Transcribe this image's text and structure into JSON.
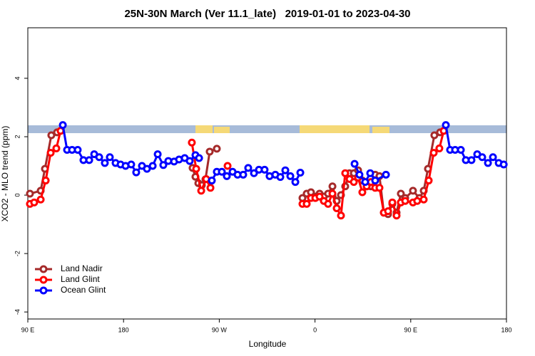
{
  "chart_data": {
    "type": "line",
    "title": "25N-30N March (Ver 11.1_late)   2019-01-01 to 2023-04-30",
    "xlabel": "Longitude",
    "ylabel": "XCO2 - MLO trend (ppm)",
    "xlim": [
      90,
      540
    ],
    "xticks": [
      {
        "value": 90,
        "label": "90 E"
      },
      180,
      {
        "value": 270,
        "label": "90 W"
      },
      {
        "value": 360,
        "label": "0"
      },
      {
        "value": 450,
        "label": "90 E"
      },
      {
        "value": 540,
        "label": "180"
      }
    ],
    "ylim": [
      -4.24,
      5.73
    ],
    "yticks": [
      -4,
      -2,
      0,
      2,
      4
    ],
    "legend": "lower left",
    "series": [
      {
        "name": "Land Nadir",
        "color": "#a52a2a",
        "x": [
          92.0,
          102.1,
          106.1,
          112.1,
          117.5,
          null,
          244.9,
          247.6,
          250.3,
          253.6,
          257.0,
          261.0,
          267.7,
          null,
          348.2,
          352.2,
          356.2,
          360.3,
          364.3,
          368.3,
          372.3,
          376.4,
          380.4,
          384.4,
          388.4,
          392.5,
          396.5,
          400.5,
          404.5,
          408.6,
          412.6,
          416.6,
          420.6,
          424.7,
          428.7,
          432.7,
          436.7,
          440.7,
          444.8,
          452.1,
          458.2,
          462.2,
          466.2,
          472.2,
          477.6
        ],
        "values": [
          0.05,
          0.15,
          0.9,
          2.05,
          2.15,
          null,
          0.93,
          0.63,
          0.41,
          0.34,
          0.54,
          1.49,
          1.59,
          null,
          -0.1,
          0.05,
          0.1,
          -0.05,
          0.05,
          -0.05,
          0.05,
          0.3,
          -0.2,
          0,
          0.3,
          0.75,
          0.75,
          0.85,
          0.5,
          0.3,
          0.3,
          0.7,
          0.65,
          -0.6,
          -0.65,
          -0.3,
          -0.6,
          0.05,
          -0.1,
          0.15,
          -0.1,
          0.15,
          0.9,
          2.05,
          2.15
        ]
      },
      {
        "name": "Land Glint",
        "color": "#ff0000",
        "x": [
          92.0,
          96.0,
          102.1,
          106.8,
          111.5,
          116.8,
          120.8,
          null,
          244.2,
          248.3,
          253.0,
          257.7,
          261.7,
          null,
          277.8,
          null,
          348.2,
          352.2,
          356.2,
          360.3,
          364.3,
          368.3,
          372.3,
          376.4,
          380.4,
          384.4,
          388.4,
          392.5,
          396.5,
          400.5,
          404.5,
          408.6,
          412.6,
          416.6,
          420.6,
          424.7,
          428.7,
          432.7,
          436.7,
          440.7,
          444.8,
          452.1,
          456.1,
          462.2,
          466.9,
          471.6,
          476.9,
          481.0
        ],
        "values": [
          -0.3,
          -0.25,
          -0.15,
          0.5,
          1.45,
          1.6,
          2.2,
          null,
          1.8,
          0.9,
          0.15,
          0.55,
          0.25,
          null,
          1.0,
          null,
          -0.3,
          -0.3,
          -0.1,
          -0.1,
          -0.05,
          -0.2,
          -0.3,
          0.05,
          -0.45,
          -0.7,
          0.75,
          0.55,
          0.45,
          0.6,
          0.1,
          0.3,
          0.45,
          0.25,
          0.25,
          -0.6,
          -0.55,
          -0.25,
          -0.7,
          -0.25,
          -0.2,
          -0.25,
          -0.2,
          -0.15,
          0.5,
          1.45,
          1.6,
          2.2
        ]
      },
      {
        "name": "Ocean Glint",
        "color": "#0000ff",
        "x": [
          122.9,
          126.9,
          131.6,
          136.9,
          142.3,
          147.7,
          152.4,
          157.1,
          162.4,
          167.1,
          172.5,
          177.2,
          181.9,
          187.2,
          191.9,
          197.3,
          202.0,
          207.4,
          212.1,
          217.4,
          222.1,
          227.5,
          232.2,
          237.5,
          242.2,
          247.6,
          251.0,
          null,
          263.0,
          267.7,
          272.4,
          277.1,
          282.5,
          287.2,
          292.5,
          297.2,
          302.6,
          307.3,
          312.6,
          317.3,
          322.7,
          327.4,
          332.1,
          336.8,
          341.5,
          346.2,
          null,
          397.2,
          401.8,
          407.2,
          411.9,
          416.6,
          426.7,
          null,
          483.0,
          487.0,
          491.7,
          497.1,
          501.8,
          507.1,
          512.5,
          517.2,
          522.6,
          527.3,
          532.7,
          537.4
        ],
        "values": [
          2.4,
          1.55,
          1.55,
          1.55,
          1.2,
          1.2,
          1.4,
          1.3,
          1.1,
          1.3,
          1.1,
          1.05,
          1.0,
          1.05,
          0.78,
          1.0,
          0.9,
          1.0,
          1.4,
          1.03,
          1.17,
          1.15,
          1.22,
          1.27,
          1.17,
          1.37,
          1.27,
          null,
          0.5,
          0.8,
          0.8,
          0.65,
          0.8,
          0.7,
          0.7,
          0.93,
          0.75,
          0.87,
          0.87,
          0.65,
          0.7,
          0.62,
          0.85,
          0.65,
          0.45,
          0.77,
          null,
          1.07,
          0.7,
          0.45,
          0.75,
          0.5,
          0.7,
          null,
          2.4,
          1.55,
          1.55,
          1.55,
          1.2,
          1.2,
          1.4,
          1.3,
          1.1,
          1.3,
          1.1,
          1.05
        ]
      }
    ]
  }
}
